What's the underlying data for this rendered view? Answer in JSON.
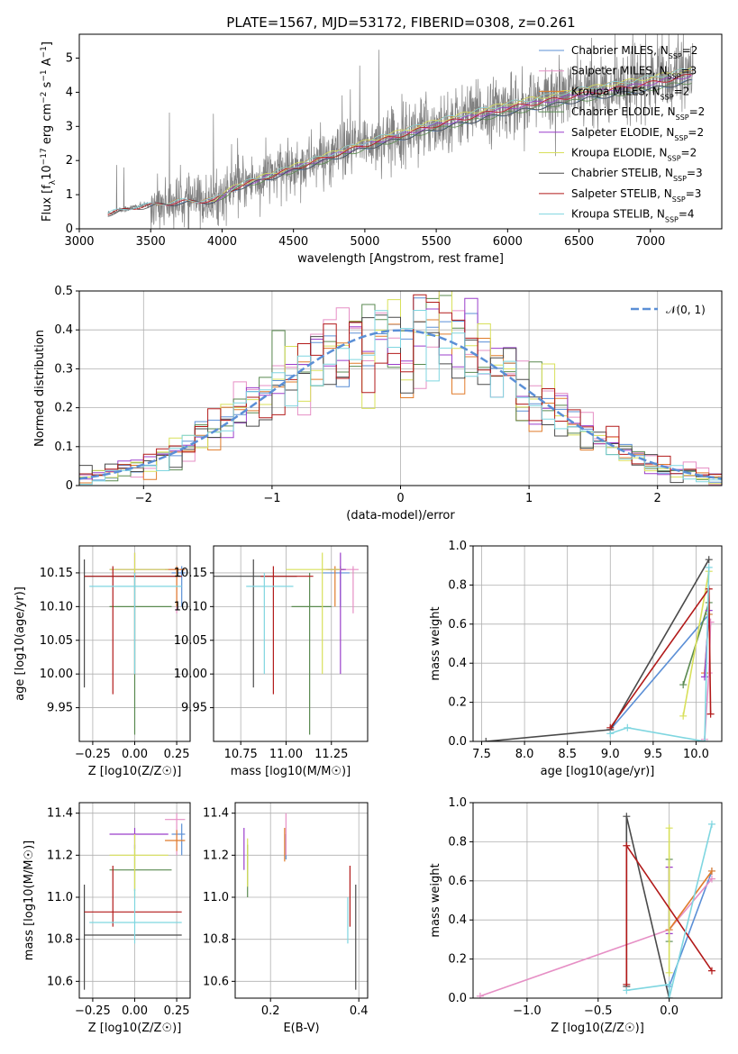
{
  "figure": {
    "title": "PLATE=1567, MJD=53172, FIBERID=0308, z=0.261"
  },
  "colors": {
    "Chabrier MILES": "#5b8fd6",
    "Salpeter MILES": "#e68fc5",
    "Kroupa MILES": "#e07b2a",
    "Chabrier ELODIE": "#5a8a50",
    "Salpeter ELODIE": "#9b3fcb",
    "Kroupa ELODIE": "#d8e05a",
    "Chabrier STELIB": "#4a4a4a",
    "Salpeter STELIB": "#b21a1a",
    "Kroupa STELIB": "#7fd6e0",
    "data": "#808080",
    "normal": "#5b8fd6"
  },
  "chart_data": [
    {
      "id": "spectrum",
      "type": "line",
      "xlabel": "wavelength [Angstrom, rest frame]",
      "ylabel": "Flux [f_λ 10^-17 erg cm^-2 s^-1 A^-1]",
      "xlim": [
        3000,
        7500
      ],
      "ylim": [
        0,
        5.7
      ],
      "xticks": [
        3000,
        3500,
        4000,
        4500,
        5000,
        5500,
        6000,
        6500,
        7000
      ],
      "yticks": [
        0,
        1,
        2,
        3,
        4,
        5
      ],
      "grid": false,
      "legend_position": "top-right",
      "data_range": [
        3200,
        7300
      ],
      "continuum": [
        {
          "x": 3200,
          "y": 0.45
        },
        {
          "x": 3400,
          "y": 0.65
        },
        {
          "x": 3700,
          "y": 0.8
        },
        {
          "x": 3950,
          "y": 0.85
        },
        {
          "x": 4100,
          "y": 1.25
        },
        {
          "x": 4500,
          "y": 1.8
        },
        {
          "x": 5000,
          "y": 2.5
        },
        {
          "x": 5500,
          "y": 3.1
        },
        {
          "x": 6000,
          "y": 3.6
        },
        {
          "x": 6500,
          "y": 4.0
        },
        {
          "x": 7000,
          "y": 4.35
        },
        {
          "x": 7300,
          "y": 4.6
        }
      ],
      "series": [
        {
          "name": "Chabrier MILES, N_SSP=2"
        },
        {
          "name": "Salpeter MILES, N_SSP=3"
        },
        {
          "name": "Kroupa MILES, N_SSP=2"
        },
        {
          "name": "Chabrier ELODIE, N_SSP=2"
        },
        {
          "name": "Salpeter ELODIE, N_SSP=2"
        },
        {
          "name": "Kroupa ELODIE, N_SSP=2"
        },
        {
          "name": "Chabrier STELIB, N_SSP=3"
        },
        {
          "name": "Salpeter STELIB, N_SSP=3"
        },
        {
          "name": "Kroupa STELIB, N_SSP=4"
        }
      ]
    },
    {
      "id": "residuals",
      "type": "line",
      "xlabel": "(data-model)/error",
      "ylabel": "Normed distribution",
      "xlim": [
        -2.5,
        2.5
      ],
      "ylim": [
        0,
        0.5
      ],
      "xticks": [
        -2,
        -1,
        0,
        1,
        2
      ],
      "yticks": [
        0.0,
        0.1,
        0.2,
        0.3,
        0.4,
        0.5
      ],
      "grid": true,
      "legend_position": "top-right",
      "normal_label": "N(0,1)",
      "bin_width": 0.1
    },
    {
      "id": "age-vs-z",
      "type": "scatter",
      "xlabel": "Z [log10(Z/Z☉)]",
      "ylabel": "age [log10(age/yr)]",
      "xlim": [
        -0.33,
        0.33
      ],
      "ylim": [
        9.9,
        10.19
      ],
      "xticks": [
        -0.25,
        0.0,
        0.25
      ],
      "xticklabels": [
        "−0.25",
        "0.00",
        "0.25"
      ],
      "yticks": [
        9.95,
        10.0,
        10.05,
        10.1,
        10.15
      ],
      "yticklabels": [
        "9.95",
        "10.00",
        "10.05",
        "10.10",
        "10.15"
      ],
      "grid": true
    },
    {
      "id": "age-vs-mass",
      "type": "scatter",
      "xlabel": "mass [log10(M/M☉)]",
      "ylabel": "",
      "xlim": [
        10.6,
        11.45
      ],
      "ylim": [
        9.9,
        10.19
      ],
      "xticks": [
        10.75,
        11.0,
        11.25
      ],
      "xticklabels": [
        "10.75",
        "11.00",
        "11.25"
      ],
      "yticks": [
        9.95,
        10.0,
        10.05,
        10.1,
        10.15
      ],
      "yticklabels": [
        "9.95",
        "10.00",
        "10.05",
        "10.10",
        "10.15"
      ],
      "grid": true
    },
    {
      "id": "weight-vs-age",
      "type": "line",
      "xlabel": "age [log10(age/yr)]",
      "ylabel": "mass weight",
      "xlim": [
        7.4,
        10.3
      ],
      "ylim": [
        0,
        1
      ],
      "xticks": [
        7.5,
        8.0,
        8.5,
        9.0,
        9.5,
        10.0
      ],
      "xticklabels": [
        "7.5",
        "8.0",
        "8.5",
        "9.0",
        "9.5",
        "10.0"
      ],
      "yticks": [
        0.0,
        0.2,
        0.4,
        0.6,
        0.8,
        1.0
      ],
      "yticklabels": [
        "0.0",
        "0.2",
        "0.4",
        "0.6",
        "0.8",
        "1.0"
      ],
      "grid": true
    },
    {
      "id": "mass-vs-z",
      "type": "scatter",
      "xlabel": "Z [log10(Z/Z☉)]",
      "ylabel": "mass [log10(M/M☉)]",
      "xlim": [
        -0.33,
        0.33
      ],
      "ylim": [
        10.52,
        11.45
      ],
      "xticks": [
        -0.25,
        0.0,
        0.25
      ],
      "xticklabels": [
        "−0.25",
        "0.00",
        "0.25"
      ],
      "yticks": [
        10.6,
        10.8,
        11.0,
        11.2,
        11.4
      ],
      "yticklabels": [
        "10.6",
        "10.8",
        "11.0",
        "11.2",
        "11.4"
      ],
      "grid": true
    },
    {
      "id": "mass-vs-ebv",
      "type": "scatter",
      "xlabel": "E(B-V)",
      "ylabel": "",
      "xlim": [
        0.12,
        0.42
      ],
      "ylim": [
        10.52,
        11.45
      ],
      "xticks": [
        0.2,
        0.4
      ],
      "xticklabels": [
        "0.2",
        "0.4"
      ],
      "yticks": [
        10.6,
        10.8,
        11.0,
        11.2,
        11.4
      ],
      "yticklabels": [
        "10.6",
        "10.8",
        "11.0",
        "11.2",
        "11.4"
      ],
      "grid": true
    },
    {
      "id": "weight-vs-z",
      "type": "line",
      "xlabel": "Z [log10(Z/Z☉)]",
      "ylabel": "mass weight",
      "xlim": [
        -1.38,
        0.37
      ],
      "ylim": [
        0,
        1
      ],
      "xticks": [
        -1.0,
        -0.5,
        0.0
      ],
      "xticklabels": [
        "−1.0",
        "−0.5",
        "0.0"
      ],
      "yticks": [
        0.0,
        0.2,
        0.4,
        0.6,
        0.8,
        1.0
      ],
      "yticklabels": [
        "0.0",
        "0.2",
        "0.4",
        "0.6",
        "0.8",
        "1.0"
      ],
      "grid": true
    }
  ],
  "models": [
    {
      "key": "Chabrier MILES",
      "z": 0.28,
      "z_err": [
        0.22,
        0.3
      ],
      "age": 10.15,
      "age_err": [
        10.1,
        10.16
      ],
      "mass": 11.3,
      "mass_err": [
        11.2,
        11.35
      ],
      "ebv": 0.235,
      "ebv_err": [
        11.18,
        11.3
      ],
      "ssp": [
        {
          "age": 9.0,
          "w": 0.06,
          "z": 0.0
        },
        {
          "age": 10.15,
          "w": 0.65,
          "z": 0.3
        }
      ]
    },
    {
      "key": "Salpeter MILES",
      "z": 0.25,
      "z_err": [
        0.18,
        0.3
      ],
      "age": 10.155,
      "age_err": [
        10.09,
        10.16
      ],
      "mass": 11.37,
      "mass_err": [
        11.2,
        11.4
      ],
      "ebv": 0.235,
      "ebv_err": [
        11.2,
        11.4
      ],
      "ssp": [
        {
          "age": 10.1,
          "w": 0.01,
          "z": -1.33
        },
        {
          "age": 10.15,
          "w": 0.35,
          "z": 0.0
        },
        {
          "age": 10.17,
          "w": 0.61,
          "z": 0.3
        }
      ]
    },
    {
      "key": "Kroupa MILES",
      "z": 0.25,
      "z_err": [
        0.18,
        0.3
      ],
      "age": 10.155,
      "age_err": [
        10.1,
        10.16
      ],
      "mass": 11.27,
      "mass_err": [
        11.22,
        11.32
      ],
      "ebv": 0.232,
      "ebv_err": [
        11.17,
        11.33
      ],
      "ssp": [
        {
          "age": 10.1,
          "w": 0.35,
          "z": 0.0
        },
        {
          "age": 10.15,
          "w": 0.65,
          "z": 0.3
        }
      ]
    },
    {
      "key": "Chabrier ELODIE",
      "z": 0.0,
      "z_err": [
        -0.15,
        0.22
      ],
      "age": 10.1,
      "age_err": [
        9.91,
        10.15
      ],
      "mass": 11.13,
      "mass_err": [
        11.03,
        11.25
      ],
      "ebv": 0.148,
      "ebv_err": [
        11.0,
        11.25
      ],
      "ssp": [
        {
          "age": 9.85,
          "w": 0.29,
          "z": 0.0
        },
        {
          "age": 10.15,
          "w": 0.71,
          "z": 0.0
        }
      ]
    },
    {
      "key": "Salpeter ELODIE",
      "z": 0.0,
      "z_err": [
        -0.15,
        0.2
      ],
      "age": 10.155,
      "age_err": [
        10.0,
        10.18
      ],
      "mass": 11.3,
      "mass_err": [
        11.23,
        11.33
      ],
      "ebv": 0.14,
      "ebv_err": [
        11.13,
        11.33
      ],
      "ssp": [
        {
          "age": 10.1,
          "w": 0.33,
          "z": 0.0
        },
        {
          "age": 10.15,
          "w": 0.67,
          "z": 0.0
        }
      ]
    },
    {
      "key": "Kroupa ELODIE",
      "z": 0.0,
      "z_err": [
        -0.15,
        0.2
      ],
      "age": 10.155,
      "age_err": [
        10.0,
        10.18
      ],
      "mass": 11.2,
      "mass_err": [
        11.0,
        11.3
      ],
      "ebv": 0.148,
      "ebv_err": [
        11.05,
        11.28
      ],
      "ssp": [
        {
          "age": 9.85,
          "w": 0.13,
          "z": 0.0
        },
        {
          "age": 10.15,
          "w": 0.87,
          "z": 0.0
        }
      ]
    },
    {
      "key": "Chabrier STELIB",
      "z": -0.3,
      "z_err": [
        -0.3,
        0.28
      ],
      "age": 10.145,
      "age_err": [
        9.98,
        10.17
      ],
      "mass": 10.82,
      "mass_err": [
        10.56,
        11.06
      ],
      "ebv": 0.393,
      "ebv_err": [
        10.56,
        11.06
      ],
      "ssp": [
        {
          "age": 7.55,
          "w": 0.0,
          "z": 0.0
        },
        {
          "age": 9.0,
          "w": 0.06,
          "z": -0.3
        },
        {
          "age": 10.15,
          "w": 0.93,
          "z": -0.3
        }
      ]
    },
    {
      "key": "Salpeter STELIB",
      "z": -0.13,
      "z_err": [
        -0.3,
        0.28
      ],
      "age": 10.145,
      "age_err": [
        9.97,
        10.16
      ],
      "mass": 10.93,
      "mass_err": [
        10.86,
        11.15
      ],
      "ebv": 0.38,
      "ebv_err": [
        10.86,
        11.15
      ],
      "ssp": [
        {
          "age": 9.0,
          "w": 0.07,
          "z": -0.3
        },
        {
          "age": 10.15,
          "w": 0.78,
          "z": -0.3
        },
        {
          "age": 10.17,
          "w": 0.14,
          "z": 0.3
        }
      ]
    },
    {
      "key": "Kroupa STELIB",
      "z": 0.0,
      "z_err": [
        -0.27,
        0.28
      ],
      "age": 10.13,
      "age_err": [
        10.0,
        10.15
      ],
      "mass": 10.88,
      "mass_err": [
        10.78,
        11.04
      ],
      "ebv": 0.375,
      "ebv_err": [
        10.78,
        11.0
      ],
      "ssp": [
        {
          "age": 9.0,
          "w": 0.04,
          "z": -0.3
        },
        {
          "age": 9.2,
          "w": 0.07,
          "z": 0.0
        },
        {
          "age": 10.1,
          "w": 0.0,
          "z": 0.0
        },
        {
          "age": 10.15,
          "w": 0.89,
          "z": 0.3
        }
      ]
    }
  ]
}
